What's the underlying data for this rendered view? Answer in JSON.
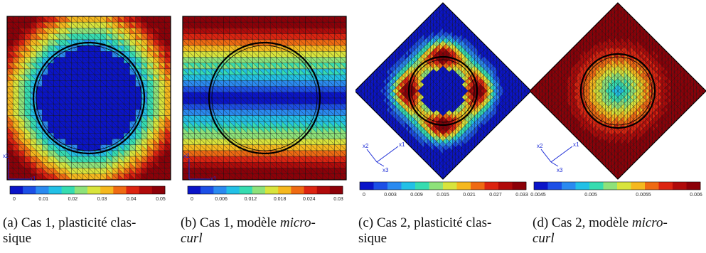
{
  "figure": {
    "panels": [
      {
        "tag": "(a)",
        "caption_pre": "Cas 1, plasticité clas-",
        "caption_em": "",
        "caption_line2": "sique",
        "caption_line2_em": false,
        "geometry": "square",
        "field": "radial",
        "axes": [
          "x2",
          "x1"
        ],
        "colorbar_ticks": [
          "0",
          "0.01",
          "0.02",
          "0.03",
          "0.04",
          "0.05"
        ]
      },
      {
        "tag": "(b)",
        "caption_pre": "Cas 1, modèle",
        "caption_em": "micro-",
        "caption_line2": "curl",
        "caption_line2_em": true,
        "geometry": "square",
        "field": "bands",
        "axes": [
          "x2",
          "x1"
        ],
        "colorbar_ticks": [
          "0",
          "0.006",
          "0.012",
          "0.018",
          "0.024",
          "0.03"
        ]
      },
      {
        "tag": "(c)",
        "caption_pre": "Cas 2, plasticité clas-",
        "caption_em": "",
        "caption_line2": "sique",
        "caption_line2_em": false,
        "geometry": "diamond",
        "field": "cross",
        "axes": [
          "x2",
          "x1",
          "x3"
        ],
        "colorbar_ticks": [
          "0",
          "0.003",
          "0.009",
          "0.015",
          "0.021",
          "0.027",
          "0.033"
        ]
      },
      {
        "tag": "(d)",
        "caption_pre": "Cas 2, modèle",
        "caption_em": "micro-",
        "caption_line2": "curl",
        "caption_line2_em": true,
        "geometry": "diamond",
        "field": "center",
        "axes": [
          "x2",
          "x1",
          "x3"
        ],
        "colorbar_ticks": [
          "0.0045",
          "0.005",
          "0.0055",
          "0.006"
        ]
      }
    ],
    "colormap": [
      "#0a14c8",
      "#1c4fe6",
      "#2a8af0",
      "#22c0e6",
      "#36dcb0",
      "#8ee27a",
      "#d8e43c",
      "#f5b81e",
      "#ef6a12",
      "#dc2410",
      "#b00a0a",
      "#8c0008"
    ]
  }
}
